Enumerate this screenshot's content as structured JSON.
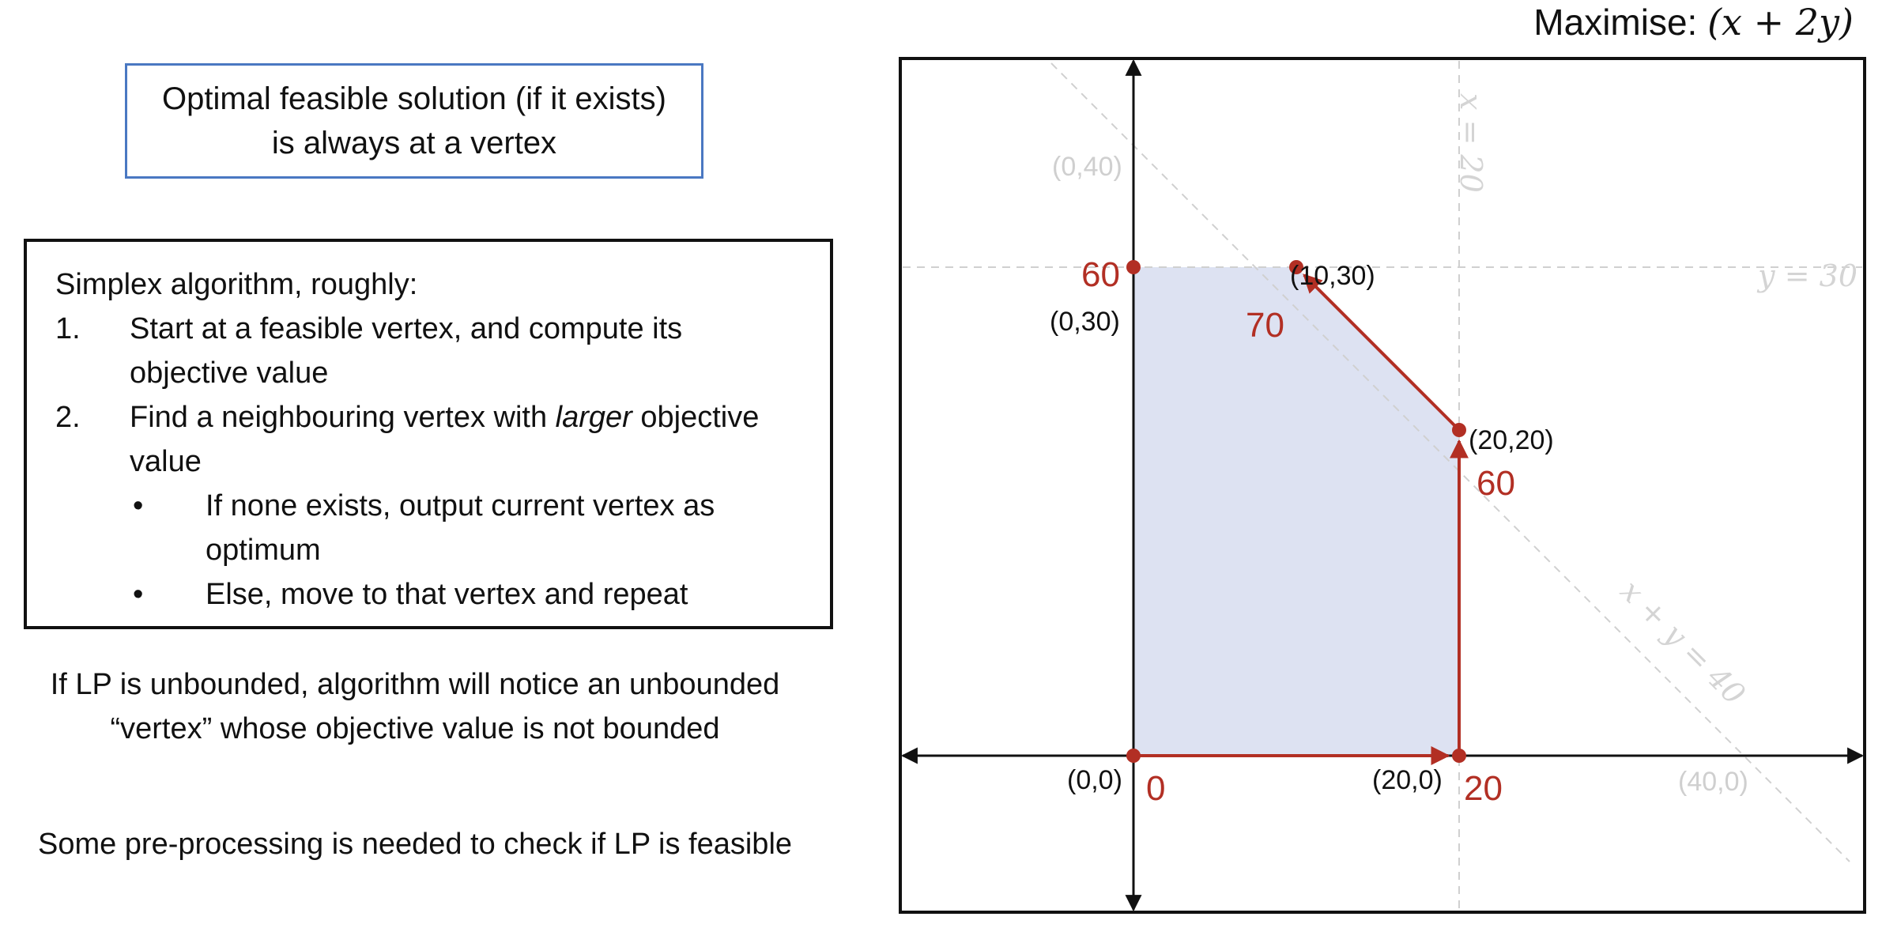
{
  "optimal_note": "Optimal feasible solution (if it exists) is always at a vertex",
  "simplex": {
    "title": "Simplex algorithm, roughly:",
    "steps": [
      {
        "num": "1.",
        "text": "Start at a feasible vertex, and compute its objective value"
      },
      {
        "num": "2.",
        "text_before": "Find a neighbouring vertex with ",
        "emphasis": "larger",
        "text_after": " objective value"
      }
    ],
    "bullets": [
      {
        "dot": "•",
        "text": "If none exists, output current vertex as optimum"
      },
      {
        "dot": "•",
        "text": "Else, move to that vertex and repeat"
      }
    ]
  },
  "unbounded_note": "If LP is unbounded, algorithm will notice an unbounded “vertex” whose objective value is not bounded",
  "feasible_note": "Some pre-processing is needed to check if LP is feasible",
  "objective": {
    "prefix": "Maximise: ",
    "expression": "(x + 2y)"
  },
  "diagram": {
    "constraint_lines": [
      {
        "label": "x = 20"
      },
      {
        "label": "y = 30"
      },
      {
        "label": "x + y = 40"
      }
    ],
    "vertices": [
      {
        "coord": "(0,0)",
        "x": 0,
        "y": 0,
        "value": "0"
      },
      {
        "coord": "(20,0)",
        "x": 20,
        "y": 0,
        "value": "20"
      },
      {
        "coord": "(20,20)",
        "x": 20,
        "y": 20,
        "value": "60"
      },
      {
        "coord": "(10,30)",
        "x": 10,
        "y": 30,
        "value": "70"
      },
      {
        "coord": "(0,30)",
        "x": 0,
        "y": 30,
        "value": "60"
      }
    ],
    "intercepts": [
      {
        "coord": "(0,40)",
        "x": 0,
        "y": 40
      },
      {
        "coord": "(40,0)",
        "x": 40,
        "y": 0
      }
    ],
    "path": [
      [
        0,
        0
      ],
      [
        20,
        0
      ],
      [
        20,
        20
      ],
      [
        10,
        30
      ]
    ],
    "colors": {
      "path": "#b22f24",
      "region": "#dde2f2",
      "guide": "#d0d0d0",
      "note_border": "#4a78c2"
    }
  }
}
